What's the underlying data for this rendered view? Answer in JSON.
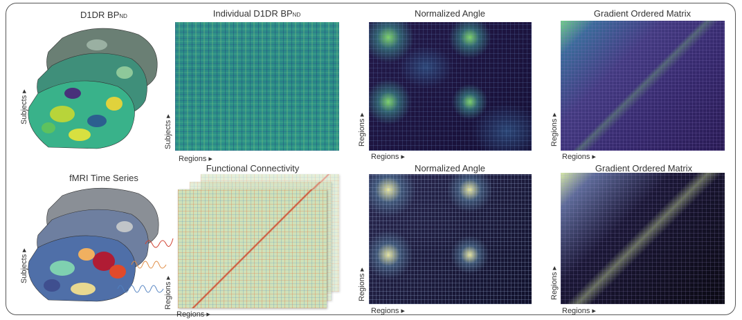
{
  "top": {
    "surface": {
      "title": "D1DR BP",
      "title_sub": "ND",
      "axis": "Subjects"
    },
    "individual": {
      "title": "Individual D1DR BP",
      "title_sub": "ND",
      "y_axis": "Subjects",
      "x_axis": "Regions"
    },
    "angle": {
      "title": "Normalized Angle",
      "y_axis": "Regions",
      "x_axis": "Regions"
    },
    "gradient": {
      "title": "Gradient Ordered Matrix",
      "y_axis": "Regions",
      "x_axis": "Regions"
    }
  },
  "bottom": {
    "surface": {
      "title": "fMRI Time Series",
      "axis": "Subjects"
    },
    "connectivity": {
      "title": "Functional Connectivity",
      "y_axis": "Regions",
      "x_axis": "Regions"
    },
    "angle": {
      "title": "Normalized Angle",
      "y_axis": "Regions",
      "x_axis": "Regions"
    },
    "gradient": {
      "title": "Gradient Ordered Matrix",
      "y_axis": "Regions",
      "x_axis": "Regions"
    }
  }
}
